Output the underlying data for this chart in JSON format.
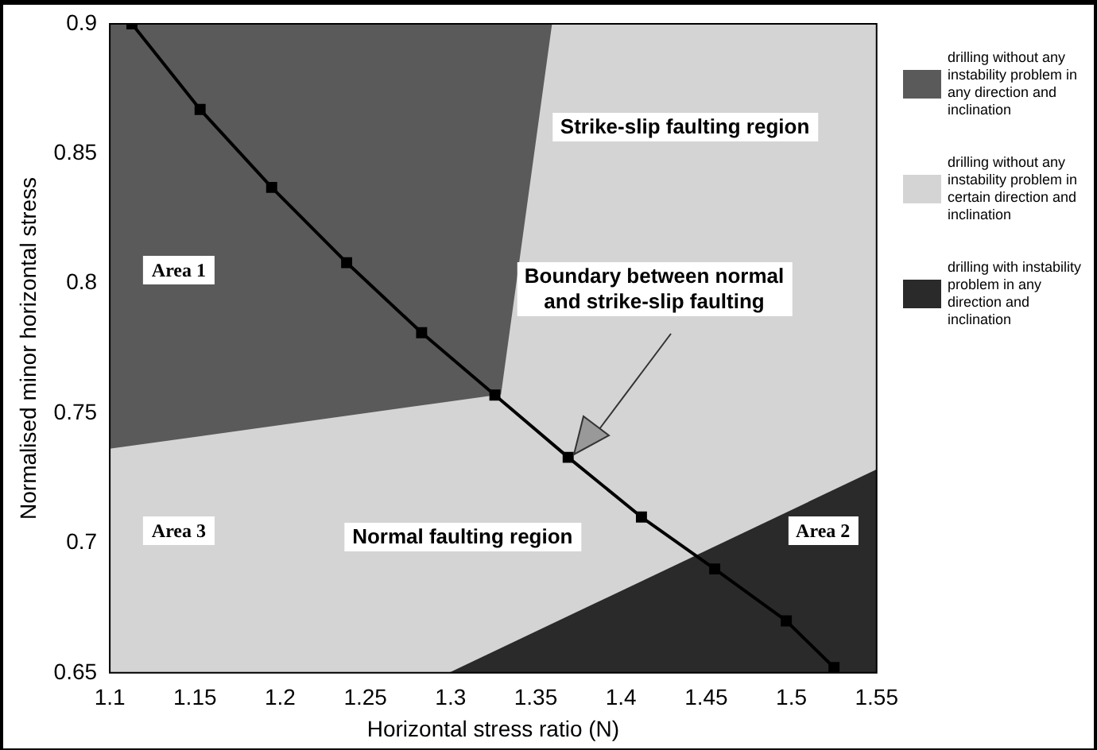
{
  "chart_data": {
    "type": "area",
    "xlabel": "Horizontal stress ratio (N)",
    "ylabel": "Normalised minor horizontal stress",
    "xlim": [
      1.1,
      1.55
    ],
    "xticks": [
      1.1,
      1.15,
      1.2,
      1.25,
      1.3,
      1.35,
      1.4,
      1.45,
      1.5,
      1.55
    ],
    "ylim": [
      0.65,
      0.9
    ],
    "yticks": [
      0.65,
      0.7,
      0.75,
      0.8,
      0.85,
      0.9
    ],
    "grid": false,
    "legend": "right",
    "series": [
      {
        "name": "drilling without any instability problem in certain direction and inclination",
        "color": "#d4d4d4",
        "x": [
          1.1,
          1.33,
          1.36,
          1.55
        ],
        "values": [
          0.736,
          0.757,
          0.9,
          0.9
        ]
      },
      {
        "name": "drilling without any instability problem in any direction and inclination",
        "color": "#5a5a5a",
        "x": [
          1.1,
          1.33,
          1.36
        ],
        "values": [
          0.9,
          0.9,
          0.9
        ]
      },
      {
        "name": "drilling with instability problem in any direction and inclination",
        "color": "#2a2a2a",
        "x": [
          1.3,
          1.55
        ],
        "values": [
          0.65,
          0.728
        ]
      },
      {
        "type": "line",
        "color": "#000000",
        "marker": "square",
        "x": [
          1.113,
          1.153,
          1.195,
          1.239,
          1.283,
          1.326,
          1.369,
          1.412,
          1.455,
          1.497,
          1.525
        ],
        "values": [
          0.9,
          0.867,
          0.837,
          0.808,
          0.781,
          0.757,
          0.733,
          0.71,
          0.69,
          0.67,
          0.652
        ]
      }
    ],
    "annotations": [
      "Area 1",
      "Area 2",
      "Area 3",
      "Strike-slip faulting region",
      "Normal faulting region",
      "Boundary between normal and strike-slip faulting"
    ]
  }
}
